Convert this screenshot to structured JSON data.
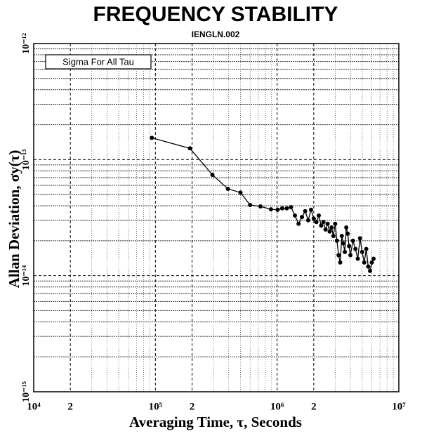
{
  "chart_data": {
    "type": "line",
    "title": "FREQUENCY STABILITY",
    "subtitle": "IENGLN.002",
    "annotation": "Sigma For All Tau",
    "x_label": "Averaging Time, τ, Seconds",
    "y_label": "Allan Deviation, σy(τ)",
    "log_x": true,
    "log_y": true,
    "grid": true,
    "xlim": [
      10000,
      10000000
    ],
    "ylim": [
      1e-15,
      1e-12
    ],
    "xticks": [
      {
        "value": 10000,
        "label": "10⁴"
      },
      {
        "value": 20000,
        "label": "2"
      },
      {
        "value": 100000,
        "label": "10⁵"
      },
      {
        "value": 200000,
        "label": "2"
      },
      {
        "value": 1000000,
        "label": "10⁶"
      },
      {
        "value": 2000000,
        "label": "2"
      },
      {
        "value": 10000000,
        "label": "10⁷"
      }
    ],
    "yticks": [
      {
        "value": 1e-15,
        "label": "10⁻¹⁵"
      },
      {
        "value": 1e-14,
        "label": "10⁻¹⁴"
      },
      {
        "value": 1e-13,
        "label": "10⁻¹³"
      },
      {
        "value": 1e-12,
        "label": "10⁻¹²"
      }
    ],
    "xticks_minor": [
      30000,
      40000,
      50000,
      60000,
      70000,
      80000,
      90000,
      300000,
      400000,
      500000,
      600000,
      700000,
      800000,
      900000,
      3000000,
      4000000,
      5000000,
      6000000,
      7000000,
      8000000,
      9000000
    ],
    "yticks_minor": [
      2e-15,
      3e-15,
      4e-15,
      5e-15,
      6e-15,
      7e-15,
      8e-15,
      9e-15,
      2e-14,
      3e-14,
      4e-14,
      5e-14,
      6e-14,
      7e-14,
      8e-14,
      9e-14,
      2e-13,
      3e-13,
      4e-13,
      5e-13,
      6e-13,
      7e-13,
      8e-13,
      9e-13
    ],
    "series": [
      {
        "color": "#000000",
        "x": [
          93500,
          192000,
          294000,
          394000,
          500000,
          600000,
          730000,
          890000,
          1010000,
          1100000,
          1200000,
          1300000,
          1400000,
          1500000,
          1600000,
          1700000,
          1800000,
          1900000,
          2000000,
          2100000,
          2200000,
          2300000,
          2400000,
          2500000,
          2600000,
          2700000,
          2800000,
          2900000,
          3000000,
          3100000,
          3200000,
          3300000,
          3400000,
          3500000,
          3600000,
          3700000,
          3800000,
          3900000,
          4000000,
          4200000,
          4400000,
          4600000,
          4800000,
          5000000,
          5200000,
          5400000,
          5600000,
          5800000,
          6000000,
          6200000
        ],
        "values": [
          1.54e-13,
          1.25e-13,
          7.4e-14,
          5.6e-14,
          5.2e-14,
          4.06e-14,
          3.95e-14,
          3.73e-14,
          3.7e-14,
          3.8e-14,
          3.8e-14,
          3.9e-14,
          3.3e-14,
          2.8e-14,
          3.2e-14,
          3.6e-14,
          3e-14,
          3.7e-14,
          3.1e-14,
          2.9e-14,
          3.3e-14,
          2.7e-14,
          2.9e-14,
          2.5e-14,
          2.8e-14,
          2.4e-14,
          2.6e-14,
          2.2e-14,
          2.8e-14,
          2e-14,
          1.5e-14,
          1.3e-14,
          2.2e-14,
          1.9e-14,
          1.6e-14,
          2.6e-14,
          2.3e-14,
          1.8e-14,
          1.5e-14,
          2e-14,
          1.7e-14,
          1.4e-14,
          2.1e-14,
          1.6e-14,
          1.3e-14,
          1.7e-14,
          1.2e-14,
          1.1e-14,
          1.3e-14,
          1.4e-14
        ]
      }
    ]
  }
}
